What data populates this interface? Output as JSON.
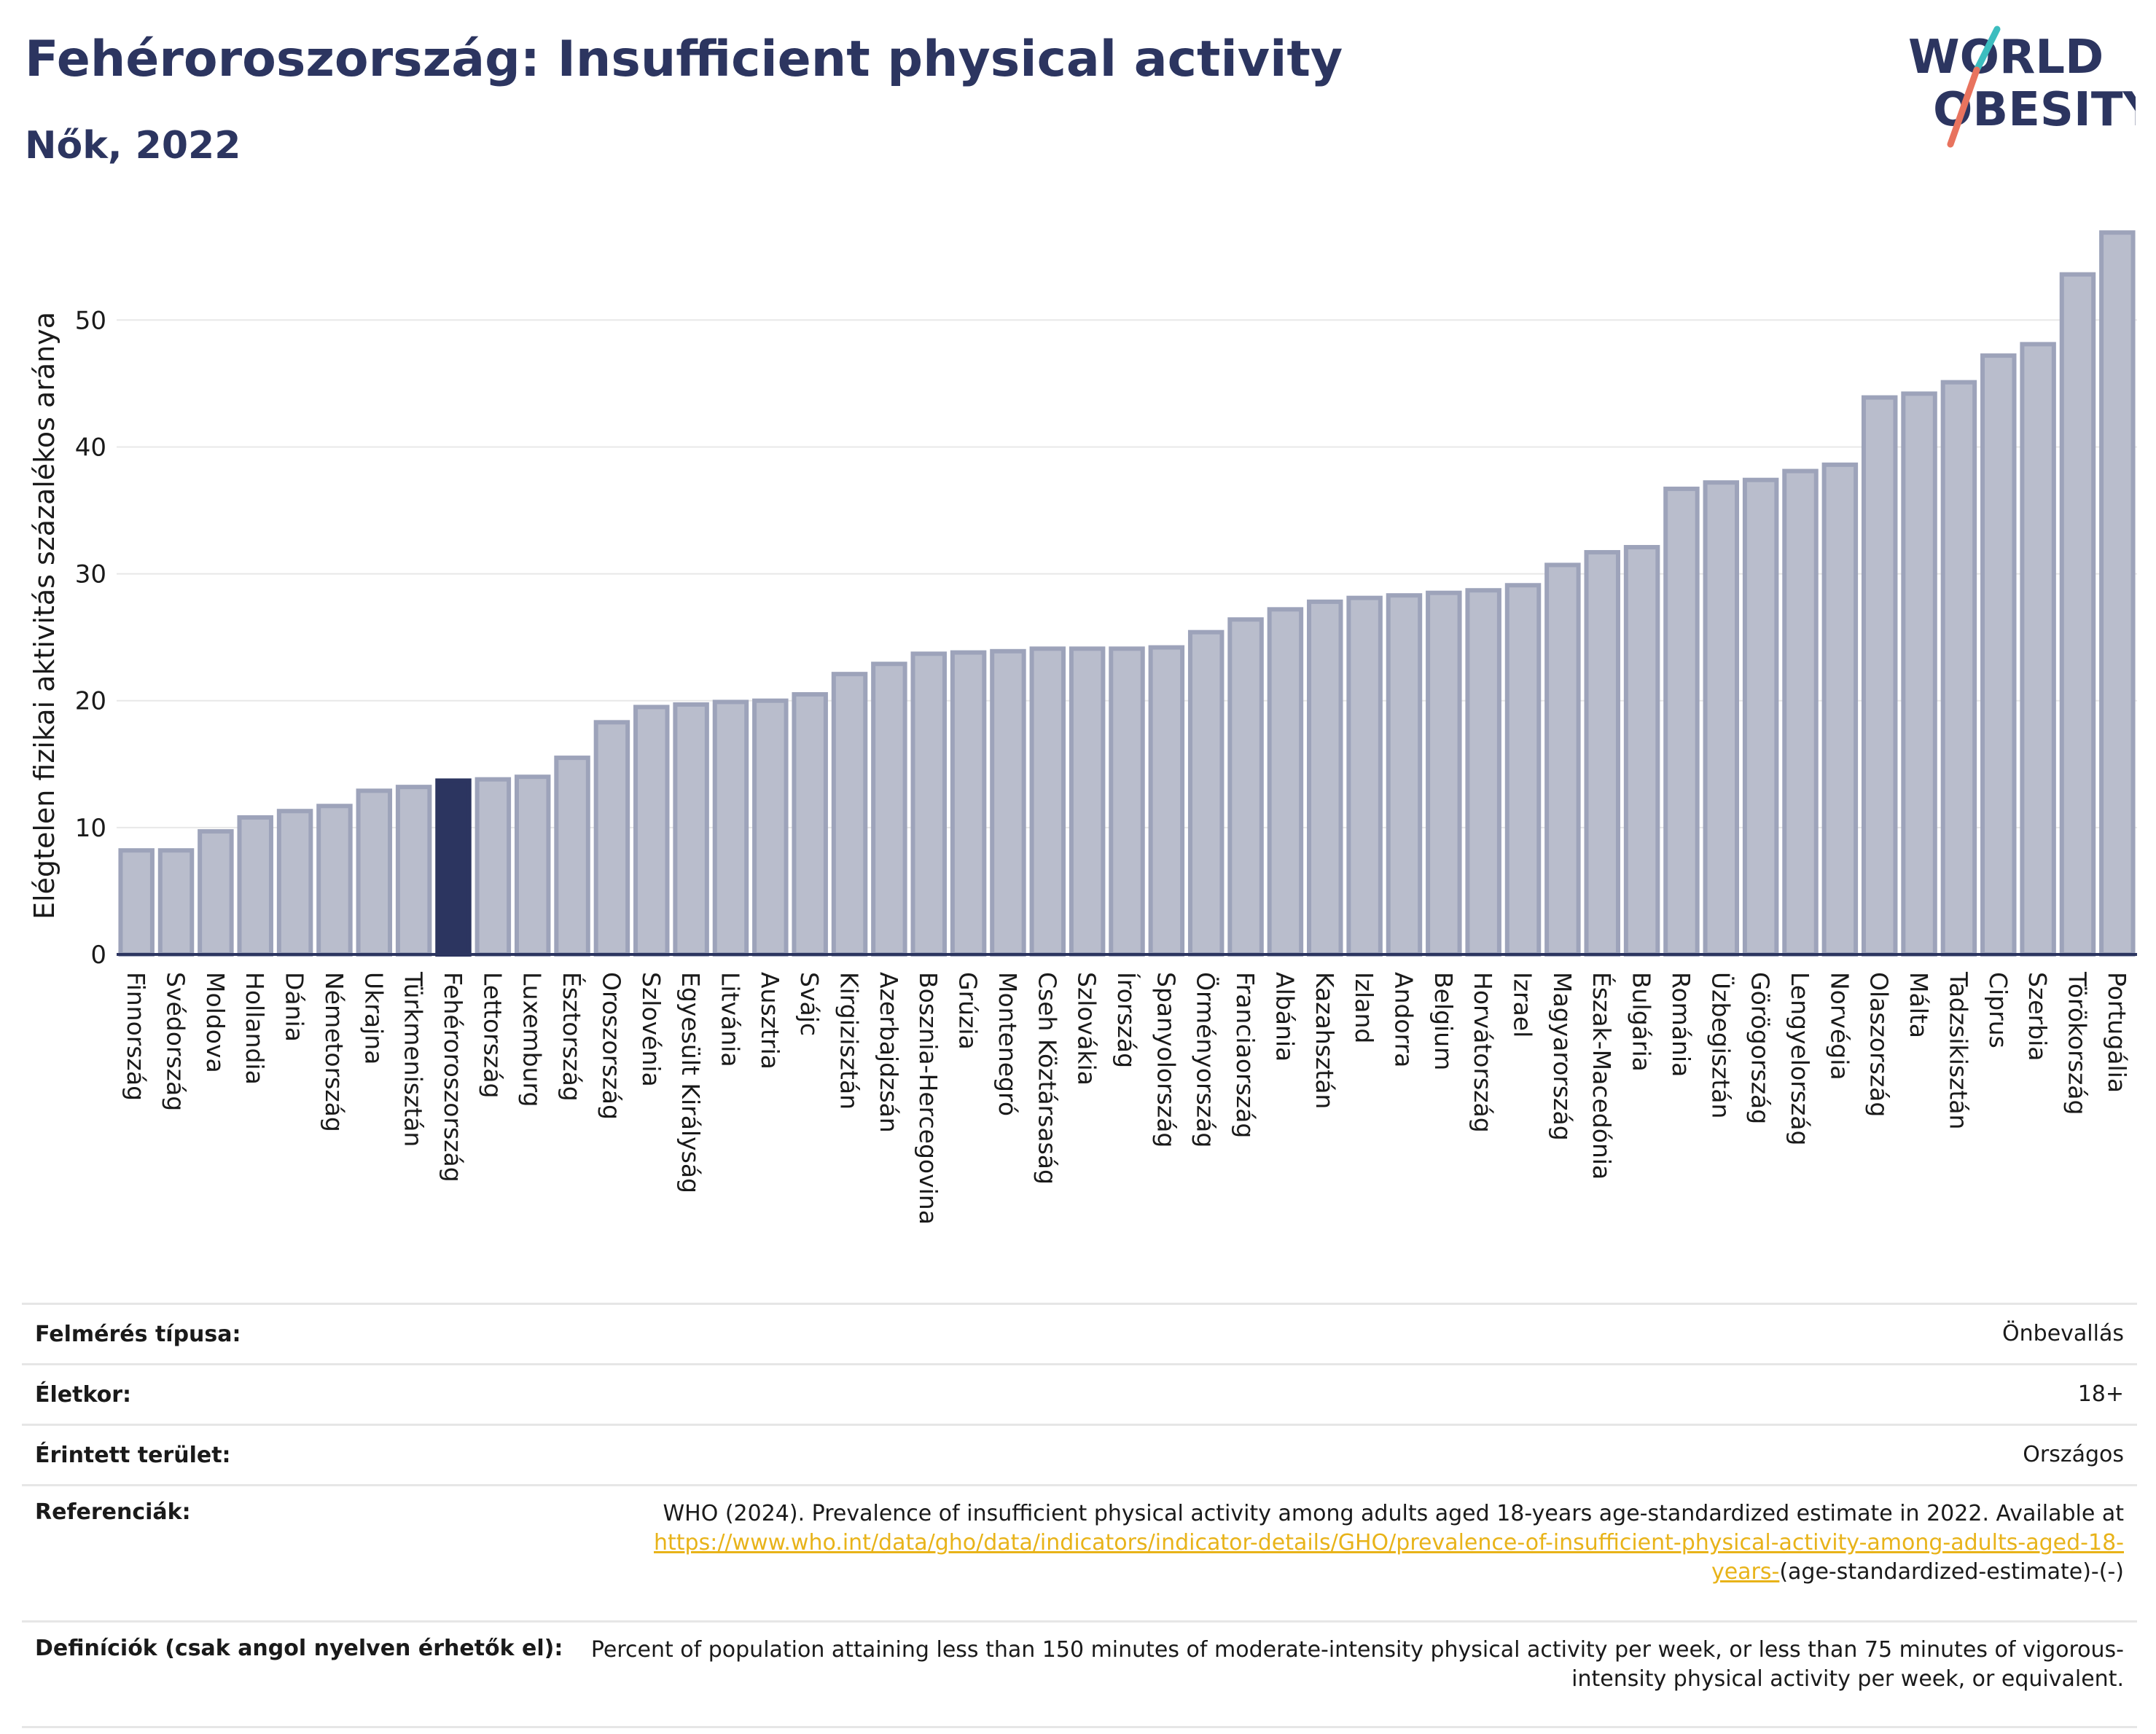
{
  "header": {
    "title": "Fehéroroszország: Insufficient physical activity",
    "subtitle": "Nők, 2022"
  },
  "logo": {
    "line1": "WORLD",
    "line2": "OBESITY"
  },
  "colors": {
    "bar": "#b9bdcc",
    "bar_stroke": "#9da3ba",
    "highlight": "#2c3560",
    "text": "#1a1a1a",
    "grid": "#e8e8e8",
    "logo_teal": "#3cbdbf",
    "logo_coral": "#e8735e",
    "link": "#e8b319"
  },
  "chart_data": {
    "type": "bar",
    "ylabel": "Elégtelen fizikai aktivitás százalékos aránya",
    "ylim": [
      0,
      58
    ],
    "yticks": [
      0,
      10,
      20,
      30,
      40,
      50
    ],
    "grid": true,
    "highlight": "Fehéroroszország",
    "categories": [
      "Finnország",
      "Svédország",
      "Moldova",
      "Hollandia",
      "Dánia",
      "Németország",
      "Ukrajna",
      "Türkmenisztán",
      "Fehéroroszország",
      "Lettország",
      "Luxemburg",
      "Észtország",
      "Oroszország",
      "Szlovénia",
      "Egyesült Királyság",
      "Litvánia",
      "Ausztria",
      "Svájc",
      "Kirgizisztán",
      "Azerbajdzsán",
      "Bosznia-Hercegovina",
      "Grúzia",
      "Montenegró",
      "Cseh Köztársaság",
      "Szlovákia",
      "Írország",
      "Spanyolország",
      "Örményország",
      "Franciaország",
      "Albánia",
      "Kazahsztán",
      "Izland",
      "Andorra",
      "Belgium",
      "Horvátország",
      "Izrael",
      "Magyarország",
      "Észak-Macedónia",
      "Bulgária",
      "Románia",
      "Üzbegisztán",
      "Görögország",
      "Lengyelország",
      "Norvégia",
      "Olaszország",
      "Málta",
      "Tadzsikisztán",
      "Ciprus",
      "Szerbia",
      "Törökország",
      "Portugália"
    ],
    "values": [
      8.2,
      8.2,
      9.7,
      10.8,
      11.3,
      11.7,
      12.9,
      13.2,
      13.7,
      13.8,
      14.0,
      15.5,
      18.3,
      19.5,
      19.7,
      19.9,
      20.0,
      20.5,
      22.1,
      22.9,
      23.7,
      23.8,
      23.9,
      24.1,
      24.1,
      24.1,
      24.2,
      25.4,
      26.4,
      27.2,
      27.8,
      28.1,
      28.3,
      28.5,
      28.7,
      29.1,
      30.7,
      31.7,
      32.1,
      36.7,
      37.2,
      37.4,
      38.1,
      38.6,
      43.9,
      44.2,
      45.1,
      47.2,
      48.1,
      53.6,
      56.9
    ]
  },
  "info": {
    "survey_type_label": "Felmérés típusa:",
    "survey_type_value": "Önbevallás",
    "age_label": "Életkor:",
    "age_value": "18+",
    "area_label": "Érintett terület:",
    "area_value": "Országos",
    "references_label": "Referenciák:",
    "references_text": "WHO (2024). Prevalence of insufficient physical activity among adults aged 18-years age-standardized estimate in 2022. Available at",
    "references_link": "https://www.who.int/data/gho/data/indicators/indicator-details/GHO/prevalence-of-insufficient-physical-activity-among-adults-aged-18-years-",
    "references_suffix": "(age-standardized-estimate)-(-)",
    "definitions_label": "Definíciók (csak angol nyelven érhetők el):",
    "definitions_text": "Percent of population attaining less than 150 minutes of moderate-intensity physical activity per week, or less than 75 minutes of vigorous-intensity physical activity per week, or equivalent."
  }
}
